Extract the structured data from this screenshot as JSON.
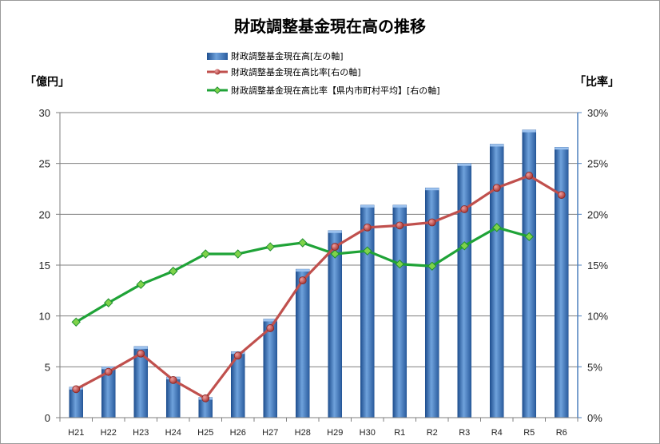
{
  "chart_data": {
    "type": "bar+line",
    "title": "財政調整基金現在高の推移",
    "categories": [
      "H21",
      "H22",
      "H23",
      "H24",
      "H25",
      "H26",
      "H27",
      "H28",
      "H29",
      "H30",
      "R1",
      "R2",
      "R3",
      "R4",
      "R5",
      "R6"
    ],
    "left_axis": {
      "label": "「億円」",
      "range": [
        0,
        30
      ],
      "ticks": [
        "0",
        "5",
        "10",
        "15",
        "20",
        "25",
        "30"
      ]
    },
    "right_axis": {
      "label": "「比率」",
      "range": [
        0,
        30
      ],
      "ticks": [
        "0%",
        "5%",
        "10%",
        "15%",
        "20%",
        "25%",
        "30%"
      ]
    },
    "series": [
      {
        "name": "財政調整基金現在高[左の軸]",
        "type": "bar",
        "axis": "left",
        "values": [
          3.0,
          5.0,
          7.0,
          4.0,
          2.0,
          6.5,
          9.7,
          14.6,
          18.4,
          20.9,
          20.9,
          22.6,
          25.0,
          26.9,
          28.3,
          26.6
        ]
      },
      {
        "name": "財政調整基金現在高比率[右の軸]",
        "type": "line",
        "axis": "right",
        "marker": "circle",
        "values": [
          2.8,
          4.5,
          6.3,
          3.7,
          1.9,
          6.1,
          8.8,
          13.5,
          16.8,
          18.7,
          18.9,
          19.2,
          20.5,
          22.6,
          23.8,
          21.9
        ]
      },
      {
        "name": "財政調整基金現在高比率【県内市町村平均】[右の軸]",
        "type": "line",
        "axis": "right",
        "marker": "diamond",
        "values": [
          9.4,
          11.3,
          13.1,
          14.4,
          16.1,
          16.1,
          16.8,
          17.2,
          16.1,
          16.4,
          15.1,
          14.9,
          16.9,
          18.7,
          17.8,
          null
        ]
      }
    ],
    "colors": {
      "bar": "#4f81bd",
      "bar_dark": "#1f4f8f",
      "line_ratio": "#c0504d",
      "line_avg": "#1fa337",
      "marker_avg": "#7fd34a",
      "grid": "#7f7f7f",
      "right_axis": "#4f81bd"
    },
    "grid": true,
    "legend_position": "top-center"
  }
}
